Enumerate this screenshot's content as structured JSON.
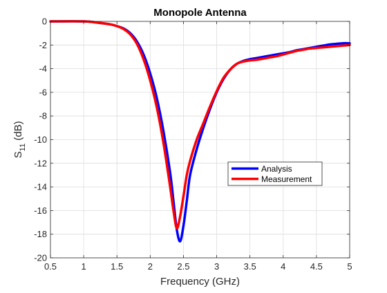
{
  "chart_data": {
    "type": "line",
    "title": "Monopole Antenna",
    "xlabel": "Frequency (GHz)",
    "ylabel": "S11 (dB)",
    "ylabel_main": "S",
    "ylabel_sub": "11",
    "ylabel_rest": " (dB)",
    "xlim": [
      0.5,
      5
    ],
    "ylim": [
      -20,
      0
    ],
    "xticks": [
      0.5,
      1,
      1.5,
      2,
      2.5,
      3,
      3.5,
      4,
      4.5,
      5
    ],
    "xtick_labels": [
      "0.5",
      "1",
      "1.5",
      "2",
      "2.5",
      "3",
      "3.5",
      "4",
      "4.5",
      "5"
    ],
    "yticks": [
      0,
      -2,
      -4,
      -6,
      -8,
      -10,
      -12,
      -14,
      -16,
      -18,
      -20
    ],
    "ytick_labels": [
      "0",
      "-2",
      "-4",
      "-6",
      "-8",
      "-10",
      "-12",
      "-14",
      "-16",
      "-18",
      "-20"
    ],
    "grid": true,
    "legend_position": "center-right",
    "series": [
      {
        "name": "Analysis",
        "color": "#0000ff",
        "x": [
          0.5,
          1.0,
          1.2,
          1.4,
          1.5,
          1.6,
          1.7,
          1.8,
          1.9,
          2.0,
          2.1,
          2.2,
          2.3,
          2.35,
          2.4,
          2.45,
          2.5,
          2.55,
          2.6,
          2.7,
          2.8,
          2.9,
          3.0,
          3.1,
          3.2,
          3.3,
          3.4,
          3.5,
          3.6,
          3.7,
          3.8,
          3.9,
          4.0,
          4.1,
          4.2,
          4.3,
          4.4,
          4.5,
          4.6,
          4.7,
          4.8,
          4.9,
          5.0
        ],
        "y": [
          0.0,
          0.0,
          -0.1,
          -0.25,
          -0.4,
          -0.6,
          -1.0,
          -1.7,
          -2.8,
          -4.4,
          -6.5,
          -9.3,
          -12.8,
          -15.2,
          -17.6,
          -18.6,
          -17.3,
          -15.2,
          -13.0,
          -10.8,
          -9.0,
          -7.4,
          -6.0,
          -4.9,
          -4.1,
          -3.6,
          -3.35,
          -3.2,
          -3.1,
          -3.0,
          -2.9,
          -2.8,
          -2.7,
          -2.6,
          -2.45,
          -2.35,
          -2.25,
          -2.15,
          -2.05,
          -1.95,
          -1.9,
          -1.85,
          -1.85
        ]
      },
      {
        "name": "Measurement",
        "color": "#ff0000",
        "x": [
          0.5,
          1.0,
          1.2,
          1.4,
          1.5,
          1.6,
          1.7,
          1.8,
          1.9,
          2.0,
          2.1,
          2.2,
          2.3,
          2.35,
          2.4,
          2.45,
          2.5,
          2.55,
          2.6,
          2.7,
          2.8,
          2.9,
          3.0,
          3.1,
          3.2,
          3.3,
          3.4,
          3.5,
          3.6,
          3.7,
          3.8,
          3.9,
          4.0,
          4.1,
          4.2,
          4.3,
          4.4,
          4.5,
          4.6,
          4.7,
          4.8,
          4.9,
          5.0
        ],
        "y": [
          0.0,
          0.0,
          -0.1,
          -0.25,
          -0.4,
          -0.65,
          -1.1,
          -1.9,
          -3.2,
          -5.0,
          -7.3,
          -10.3,
          -14.0,
          -16.0,
          -17.5,
          -16.5,
          -14.8,
          -13.0,
          -11.8,
          -10.0,
          -8.6,
          -7.2,
          -5.9,
          -4.8,
          -4.1,
          -3.6,
          -3.4,
          -3.3,
          -3.25,
          -3.15,
          -3.05,
          -2.95,
          -2.8,
          -2.65,
          -2.5,
          -2.4,
          -2.3,
          -2.25,
          -2.2,
          -2.15,
          -2.1,
          -2.05,
          -2.0
        ]
      }
    ]
  }
}
